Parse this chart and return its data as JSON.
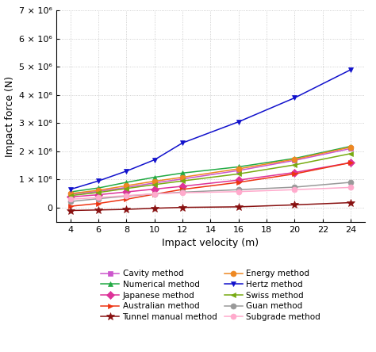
{
  "x": [
    4,
    6,
    8,
    10,
    12,
    16,
    20,
    24
  ],
  "series": {
    "Cavity method": [
      480000,
      580000,
      720000,
      880000,
      1020000,
      1320000,
      1680000,
      2100000
    ],
    "Numerical method": [
      560000,
      700000,
      900000,
      1080000,
      1230000,
      1450000,
      1750000,
      2180000
    ],
    "Japanese method": [
      380000,
      460000,
      560000,
      660000,
      760000,
      980000,
      1250000,
      1600000
    ],
    "Australian method": [
      50000,
      150000,
      300000,
      480000,
      650000,
      900000,
      1200000,
      1600000
    ],
    "Tunnel manual method": [
      -100000,
      -80000,
      -60000,
      -20000,
      10000,
      30000,
      100000,
      180000
    ],
    "Energy method": [
      500000,
      620000,
      780000,
      940000,
      1080000,
      1380000,
      1720000,
      2150000
    ],
    "Hertz method": [
      650000,
      950000,
      1300000,
      1700000,
      2300000,
      3050000,
      3900000,
      4900000
    ],
    "Swiss method": [
      430000,
      540000,
      680000,
      820000,
      950000,
      1200000,
      1520000,
      1920000
    ],
    "Guan method": [
      220000,
      320000,
      410000,
      490000,
      550000,
      640000,
      730000,
      900000
    ],
    "Subgrade method": [
      300000,
      360000,
      430000,
      490000,
      530000,
      570000,
      640000,
      720000
    ]
  },
  "colors": {
    "Cavity method": "#cc55cc",
    "Numerical method": "#22aa44",
    "Japanese method": "#dd3399",
    "Australian method": "#ee3311",
    "Tunnel manual method": "#881111",
    "Energy method": "#ee8822",
    "Hertz method": "#1111cc",
    "Swiss method": "#77aa11",
    "Guan method": "#999999",
    "Subgrade method": "#ffaacc"
  },
  "markers": {
    "Cavity method": "s",
    "Numerical method": "^",
    "Japanese method": "D",
    "Australian method": ">",
    "Tunnel manual method": "*",
    "Energy method": "o",
    "Hertz method": "v",
    "Swiss method": "<",
    "Guan method": "o",
    "Subgrade method": "o"
  },
  "markersizes": {
    "Cavity method": 5,
    "Numerical method": 5,
    "Japanese method": 5,
    "Australian method": 5,
    "Tunnel manual method": 7,
    "Energy method": 5,
    "Hertz method": 5,
    "Swiss method": 5,
    "Guan method": 5,
    "Subgrade method": 5
  },
  "xlabel": "Impact velocity (m)",
  "ylabel": "Impact force (N)",
  "xlim": [
    3,
    25
  ],
  "ylim": [
    -500000,
    7000000
  ],
  "yticks": [
    0,
    1000000,
    2000000,
    3000000,
    4000000,
    5000000,
    6000000,
    7000000
  ],
  "ytick_labels": [
    "0",
    "1 × 10⁶",
    "2 × 10⁶",
    "3 × 10⁶",
    "4 × 10⁶",
    "5 × 10⁶",
    "6 × 10⁶",
    "7 × 10⁶"
  ],
  "xticks": [
    4,
    6,
    8,
    10,
    12,
    14,
    16,
    18,
    20,
    22,
    24
  ],
  "background_color": "#ffffff",
  "grid_color": "#bbbbbb",
  "order_left": [
    "Cavity method",
    "Numerical method",
    "Japanese method",
    "Australian method",
    "Tunnel manual method"
  ],
  "order_right": [
    "Energy method",
    "Hertz method",
    "Swiss method",
    "Guan method",
    "Subgrade method"
  ]
}
